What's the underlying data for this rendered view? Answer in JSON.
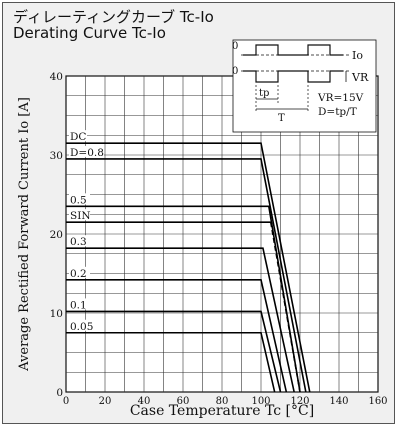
{
  "header": {
    "title_jp": "ディレーティングカーブ Tc-Io",
    "title_en": "Derating Curve Tc-Io"
  },
  "chart_data": {
    "type": "line",
    "title": "Derating Curve Tc-Io",
    "xlabel": "Case Temperature Tc [°C]",
    "ylabel": "Average Rectified Forward Current Io [A]",
    "xlim": [
      0,
      160
    ],
    "ylim": [
      0,
      40
    ],
    "x_ticks": [
      "0",
      "20",
      "40",
      "60",
      "80",
      "100",
      "120",
      "140",
      "160"
    ],
    "y_ticks": [
      "0",
      "10",
      "20",
      "30",
      "40"
    ],
    "grid": true,
    "series": [
      {
        "name": "DC",
        "x": [
          0,
          100,
          125
        ],
        "y": [
          31.5,
          31.5,
          0
        ]
      },
      {
        "name": "D=0.8",
        "x": [
          0,
          100,
          123
        ],
        "y": [
          29.5,
          29.5,
          0
        ]
      },
      {
        "name": "0.5",
        "x": [
          0,
          104,
          120
        ],
        "y": [
          23.5,
          23.5,
          0
        ]
      },
      {
        "name": "SIN",
        "x": [
          0,
          105,
          120
        ],
        "y": [
          21.5,
          21.5,
          0
        ],
        "dashed_segment": [
          1,
          2
        ]
      },
      {
        "name": "0.3",
        "x": [
          0,
          101,
          117
        ],
        "y": [
          18.2,
          18.2,
          0
        ]
      },
      {
        "name": "0.2",
        "x": [
          0,
          100,
          113
        ],
        "y": [
          14.2,
          14.2,
          0
        ]
      },
      {
        "name": "0.1",
        "x": [
          0,
          100,
          110
        ],
        "y": [
          10.2,
          10.2,
          0
        ]
      },
      {
        "name": "0.05",
        "x": [
          0,
          100,
          107
        ],
        "y": [
          7.5,
          7.5,
          0
        ]
      }
    ],
    "inset": {
      "label_io": "Io",
      "label_vr": "VR",
      "zero_top": "0",
      "zero_bottom": "0",
      "label_tp": "tp",
      "label_T": "T",
      "eq_vr": "VR=15V",
      "eq_d": "D=tp/T"
    }
  }
}
